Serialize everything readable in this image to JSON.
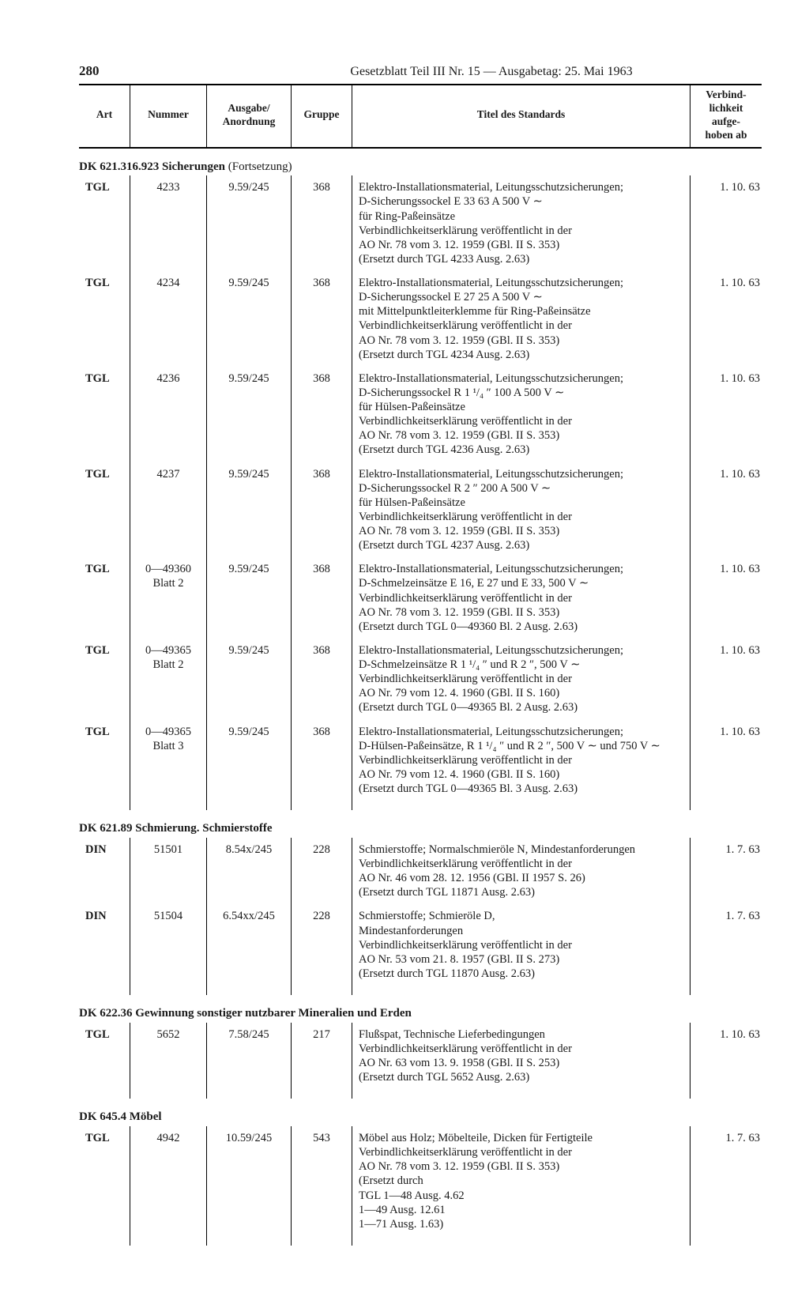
{
  "page_number": "280",
  "header": "Gesetzblatt Teil III Nr. 15 — Ausgabetag: 25. Mai 1963",
  "columns": {
    "art": "Art",
    "nummer": "Nummer",
    "ausgabe": "Ausgabe/\nAnordnung",
    "gruppe": "Gruppe",
    "titel": "Titel des Standards",
    "verbind": "Verbind-\nlichkeit\naufge-\nhoben ab"
  },
  "sections": [
    {
      "heading": "DK 621.316.923 Sicherungen",
      "heading_suffix": " (Fortsetzung)",
      "rows": [
        {
          "art": "TGL",
          "nummer": "4233",
          "ausgabe": "9.59/245",
          "gruppe": "368",
          "titel": "Elektro-Installationsmaterial, Leitungsschutzsicherungen;\nD-Sicherungssockel E 33 63 A 500 V ∼\nfür Ring-Paßeinsätze\nVerbindlichkeitserklärung veröffentlicht in der\nAO Nr. 78 vom 3. 12. 1959 (GBl. II S. 353)\n(Ersetzt durch TGL 4233 Ausg. 2.63)",
          "date": "1. 10. 63"
        },
        {
          "art": "TGL",
          "nummer": "4234",
          "ausgabe": "9.59/245",
          "gruppe": "368",
          "titel": "Elektro-Installationsmaterial, Leitungsschutzsicherungen;\nD-Sicherungssockel E 27 25 A 500 V ∼\nmit Mittelpunktleiterklemme für Ring-Paßeinsätze\nVerbindlichkeitserklärung veröffentlicht in der\nAO Nr. 78 vom 3. 12. 1959 (GBl. II S. 353)\n(Ersetzt durch TGL 4234 Ausg. 2.63)",
          "date": "1. 10. 63"
        },
        {
          "art": "TGL",
          "nummer": "4236",
          "ausgabe": "9.59/245",
          "gruppe": "368",
          "titel": "Elektro-Installationsmaterial, Leitungsschutzsicherungen;\nD-Sicherungssockel R 1 ¹/₄ ″ 100 A 500 V ∼\nfür Hülsen-Paßeinsätze\nVerbindlichkeitserklärung veröffentlicht in der\nAO Nr. 78 vom 3. 12. 1959 (GBl. II S. 353)\n(Ersetzt durch TGL 4236 Ausg. 2.63)",
          "date": "1. 10. 63"
        },
        {
          "art": "TGL",
          "nummer": "4237",
          "ausgabe": "9.59/245",
          "gruppe": "368",
          "titel": "Elektro-Installationsmaterial, Leitungsschutzsicherungen;\nD-Sicherungssockel R 2 ″ 200 A 500 V ∼\nfür Hülsen-Paßeinsätze\nVerbindlichkeitserklärung veröffentlicht in der\nAO Nr. 78 vom 3. 12. 1959 (GBl. II S. 353)\n(Ersetzt durch TGL 4237 Ausg. 2.63)",
          "date": "1. 10. 63"
        },
        {
          "art": "TGL",
          "nummer": "0—49360\nBlatt 2",
          "ausgabe": "9.59/245",
          "gruppe": "368",
          "titel": "Elektro-Installationsmaterial, Leitungsschutzsicherungen;\nD-Schmelzeinsätze E 16, E 27 und E 33, 500 V ∼\nVerbindlichkeitserklärung veröffentlicht in der\nAO Nr. 78 vom 3. 12. 1959 (GBl. II S. 353)\n(Ersetzt durch TGL 0—49360 Bl. 2 Ausg. 2.63)",
          "date": "1. 10. 63"
        },
        {
          "art": "TGL",
          "nummer": "0—49365\nBlatt 2",
          "ausgabe": "9.59/245",
          "gruppe": "368",
          "titel": "Elektro-Installationsmaterial, Leitungsschutzsicherungen;\nD-Schmelzeinsätze R 1 ¹/₄ ″ und R 2 ″, 500 V ∼\nVerbindlichkeitserklärung veröffentlicht in der\nAO Nr. 79 vom 12. 4. 1960 (GBl. II S. 160)\n(Ersetzt durch TGL 0—49365 Bl. 2 Ausg. 2.63)",
          "date": "1. 10. 63"
        },
        {
          "art": "TGL",
          "nummer": "0—49365\nBlatt 3",
          "ausgabe": "9.59/245",
          "gruppe": "368",
          "titel": "Elektro-Installationsmaterial, Leitungsschutzsicherungen;\nD-Hülsen-Paßeinsätze, R 1 ¹/₄ ″ und R 2 ″, 500 V ∼ und 750 V ∼\nVerbindlichkeitserklärung veröffentlicht in der\nAO Nr. 79 vom 12. 4. 1960 (GBl. II S. 160)\n(Ersetzt durch TGL 0—49365 Bl. 3 Ausg. 2.63)",
          "date": "1. 10. 63"
        }
      ]
    },
    {
      "heading": "DK 621.89 Schmierung. Schmierstoffe",
      "heading_suffix": "",
      "rows": [
        {
          "art": "DIN",
          "nummer": "51501",
          "ausgabe": "8.54x/245",
          "gruppe": "228",
          "titel": "Schmierstoffe; Normalschmieröle N, Mindestanforderungen\nVerbindlichkeitserklärung veröffentlicht in der\nAO Nr. 46 vom 28. 12. 1956 (GBl. II 1957 S. 26)\n(Ersetzt durch TGL 11871 Ausg. 2.63)",
          "date": "1.  7. 63"
        },
        {
          "art": "DIN",
          "nummer": "51504",
          "ausgabe": "6.54xx/245",
          "gruppe": "228",
          "titel": "Schmierstoffe; Schmieröle D,\nMindestanforderungen\nVerbindlichkeitserklärung veröffentlicht in der\nAO Nr. 53 vom 21. 8. 1957 (GBl. II S. 273)\n(Ersetzt durch TGL 11870 Ausg. 2.63)",
          "date": "1.  7. 63"
        }
      ]
    },
    {
      "heading": "DK 622.36 Gewinnung sonstiger nutzbarer Mineralien und Erden",
      "heading_suffix": "",
      "rows": [
        {
          "art": "TGL",
          "nummer": "5652",
          "ausgabe": "7.58/245",
          "gruppe": "217",
          "titel": "Flußspat, Technische Lieferbedingungen\nVerbindlichkeitserklärung veröffentlicht in der\nAO Nr. 63 vom 13. 9. 1958 (GBl. II S. 253)\n(Ersetzt durch TGL 5652 Ausg. 2.63)",
          "date": "1. 10. 63"
        }
      ]
    },
    {
      "heading": "DK 645.4 Möbel",
      "heading_suffix": "",
      "rows": [
        {
          "art": "TGL",
          "nummer": "4942",
          "ausgabe": "10.59/245",
          "gruppe": "543",
          "titel": "Möbel aus Holz; Möbelteile, Dicken für Fertigteile\nVerbindlichkeitserklärung veröffentlicht in der\nAO Nr. 78 vom 3. 12. 1959 (GBl. II S. 353)\n(Ersetzt durch\nTGL 1—48 Ausg.  4.62\n        1—49 Ausg. 12.61\n        1—71 Ausg.  1.63)",
          "date": "1.  7. 63"
        }
      ]
    }
  ]
}
